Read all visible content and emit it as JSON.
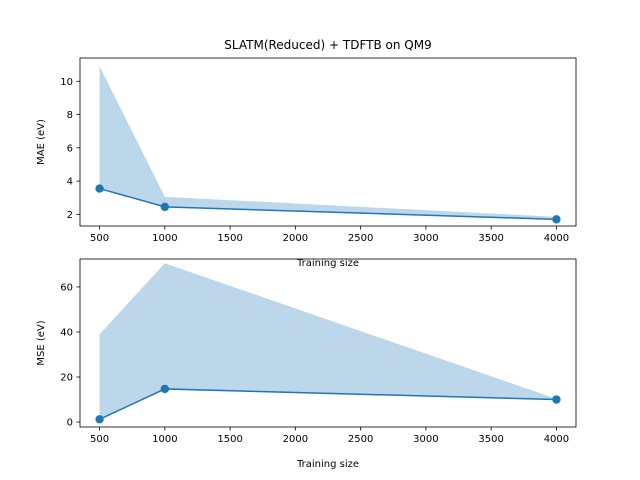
{
  "chart_data": [
    {
      "type": "line",
      "title": "SLATM(Reduced) + TDFTB on QM9",
      "xlabel": "Training size",
      "ylabel": "MAE (eV)",
      "x": [
        500,
        1000,
        4000
      ],
      "series": [
        {
          "values": [
            3.55,
            2.45,
            1.7
          ],
          "band_lower": [
            3.55,
            2.45,
            1.7
          ],
          "band_upper": [
            10.9,
            3.05,
            1.85
          ],
          "color": "#1f77b4",
          "band_color": "#bcd6ea"
        }
      ],
      "xlim": [
        350,
        4150
      ],
      "ylim": [
        1.3,
        11.4
      ],
      "xticks": [
        500,
        1000,
        1500,
        2000,
        2500,
        3000,
        3500,
        4000
      ],
      "yticks": [
        2,
        4,
        6,
        8,
        10
      ],
      "grid": false
    },
    {
      "type": "line",
      "title": "",
      "xlabel": "Training size",
      "ylabel": "MSE (eV)",
      "x": [
        500,
        1000,
        4000
      ],
      "series": [
        {
          "values": [
            1.2,
            14.7,
            10.0
          ],
          "band_lower": [
            1.2,
            14.7,
            10.0
          ],
          "band_upper": [
            39.0,
            70.5,
            10.3
          ],
          "color": "#1f77b4",
          "band_color": "#bcd6ea"
        }
      ],
      "xlim": [
        350,
        4150
      ],
      "ylim": [
        -2.2,
        72.4
      ],
      "xticks": [
        500,
        1000,
        1500,
        2000,
        2500,
        3000,
        3500,
        4000
      ],
      "yticks": [
        0,
        20,
        40,
        60
      ],
      "grid": false
    }
  ]
}
